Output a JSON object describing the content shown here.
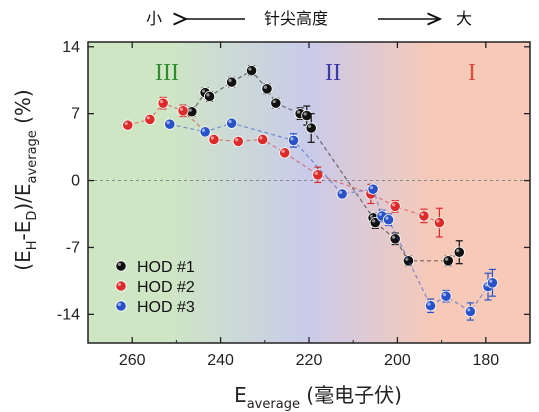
{
  "chart_data": {
    "type": "scatter",
    "top_annotation": {
      "left": "小",
      "center": "针尖高度",
      "right": "大"
    },
    "xlabel": {
      "main": "E",
      "sub": "average",
      "unit": " (毫电子伏)"
    },
    "ylabel": {
      "p1": "(E",
      "s1": "H",
      "p2": "-E",
      "s2": "D",
      "p3": ")/E",
      "s3": "average",
      "p4": " (%)"
    },
    "xlim": [
      270,
      170
    ],
    "ylim": [
      -17,
      14.5
    ],
    "x_ticks": [
      260,
      240,
      220,
      200,
      180
    ],
    "x_tick_labels": [
      "260",
      "240",
      "220",
      "200",
      "180"
    ],
    "y_ticks": [
      -14,
      -7,
      0,
      7,
      14
    ],
    "y_tick_labels": [
      "-14",
      "-7",
      "0",
      "7",
      "14"
    ],
    "zero_line": true,
    "regions": [
      {
        "label": "III",
        "color": "#2e8b2e"
      },
      {
        "label": "II",
        "color": "#3a3aa8"
      },
      {
        "label": "I",
        "color": "#d84a3a"
      }
    ],
    "background_gradient": [
      "#cfe6c4",
      "#c9cbea",
      "#f6c9b8"
    ],
    "legend_position": "bottom-left",
    "series": [
      {
        "name": "HOD #1",
        "color": "#111111",
        "points": [
          {
            "x": 246.5,
            "y": 7.2,
            "err": 0.5
          },
          {
            "x": 243.5,
            "y": 9.2,
            "err": 0.5
          },
          {
            "x": 242.5,
            "y": 8.8,
            "err": 0.5
          },
          {
            "x": 237.5,
            "y": 10.3,
            "err": 0.5
          },
          {
            "x": 233.0,
            "y": 11.5,
            "err": 0.5
          },
          {
            "x": 229.5,
            "y": 9.6,
            "err": 0.5
          },
          {
            "x": 227.5,
            "y": 8.1,
            "err": 0.5
          },
          {
            "x": 222.0,
            "y": 7.0,
            "err": 0.6
          },
          {
            "x": 220.5,
            "y": 6.8,
            "err": 1.0
          },
          {
            "x": 219.5,
            "y": 5.5,
            "err": 1.5
          },
          {
            "x": 205.5,
            "y": -3.9,
            "err": 0.5
          },
          {
            "x": 205.0,
            "y": -4.4,
            "err": 0.6
          },
          {
            "x": 200.5,
            "y": -6.1,
            "err": 0.6
          },
          {
            "x": 197.5,
            "y": -8.4,
            "err": 0.5
          },
          {
            "x": 188.5,
            "y": -8.4,
            "err": 0.5
          },
          {
            "x": 186.0,
            "y": -7.5,
            "err": 1.2
          }
        ]
      },
      {
        "name": "HOD #2",
        "color": "#dd2a2a",
        "points": [
          {
            "x": 261.0,
            "y": 5.8,
            "err": 0.4
          },
          {
            "x": 256.0,
            "y": 6.4,
            "err": 0.4
          },
          {
            "x": 253.0,
            "y": 8.1,
            "err": 0.6
          },
          {
            "x": 248.5,
            "y": 7.3,
            "err": 0.6
          },
          {
            "x": 241.5,
            "y": 4.3,
            "err": 0.4
          },
          {
            "x": 236.0,
            "y": 4.1,
            "err": 0.4
          },
          {
            "x": 230.5,
            "y": 4.3,
            "err": 0.4
          },
          {
            "x": 225.5,
            "y": 2.9,
            "err": 0.4
          },
          {
            "x": 218.0,
            "y": 0.6,
            "err": 0.8
          },
          {
            "x": 206.0,
            "y": -1.4,
            "err": 1.0
          },
          {
            "x": 200.5,
            "y": -2.7,
            "err": 0.6
          },
          {
            "x": 194.0,
            "y": -3.7,
            "err": 0.7
          },
          {
            "x": 190.5,
            "y": -4.4,
            "err": 1.5
          }
        ]
      },
      {
        "name": "HOD #3",
        "color": "#2a52c8",
        "points": [
          {
            "x": 251.5,
            "y": 5.9,
            "err": 0.4
          },
          {
            "x": 243.5,
            "y": 5.1,
            "err": 0.4
          },
          {
            "x": 237.5,
            "y": 6.0,
            "err": 0.4
          },
          {
            "x": 223.5,
            "y": 4.2,
            "err": 0.7
          },
          {
            "x": 212.5,
            "y": -1.4,
            "err": 0.4
          },
          {
            "x": 205.5,
            "y": -0.9,
            "err": 0.5
          },
          {
            "x": 203.5,
            "y": -3.7,
            "err": 0.6
          },
          {
            "x": 202.0,
            "y": -4.1,
            "err": 0.6
          },
          {
            "x": 192.5,
            "y": -13.1,
            "err": 0.7
          },
          {
            "x": 189.0,
            "y": -12.1,
            "err": 0.6
          },
          {
            "x": 183.5,
            "y": -13.7,
            "err": 0.9
          },
          {
            "x": 179.5,
            "y": -11.1,
            "err": 1.4
          },
          {
            "x": 178.5,
            "y": -10.7,
            "err": 1.4
          }
        ]
      }
    ]
  }
}
